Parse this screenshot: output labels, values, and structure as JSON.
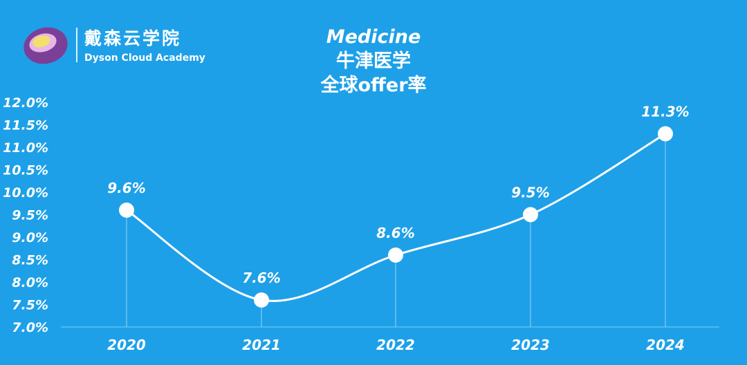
{
  "logo": {
    "name_cn": "戴森云学院",
    "name_en": "Dyson Cloud Academy"
  },
  "colors": {
    "background": "#1ea0e8",
    "line": "#ffffff",
    "logo_purple": "#7b3f98",
    "logo_yellow": "#f3e06a"
  },
  "chart_data": {
    "type": "line",
    "title_lines": [
      "Medicine",
      "牛津医学",
      "全球offer率"
    ],
    "x": [
      "2020",
      "2021",
      "2022",
      "2023",
      "2024"
    ],
    "series": [
      {
        "values": [
          9.6,
          7.6,
          8.6,
          9.5,
          11.3
        ]
      }
    ],
    "data_labels": [
      "9.6%",
      "7.6%",
      "8.6%",
      "9.5%",
      "11.3%"
    ],
    "y_ticks": [
      "12.0%",
      "11.5%",
      "11.0%",
      "10.5%",
      "10.0%",
      "9.5%",
      "9.0%",
      "8.5%",
      "8.0%",
      "7.5%",
      "7.0%"
    ],
    "ylim": [
      7.0,
      12.0
    ],
    "xlabel": "",
    "ylabel": "",
    "grid": false,
    "smooth": true
  }
}
